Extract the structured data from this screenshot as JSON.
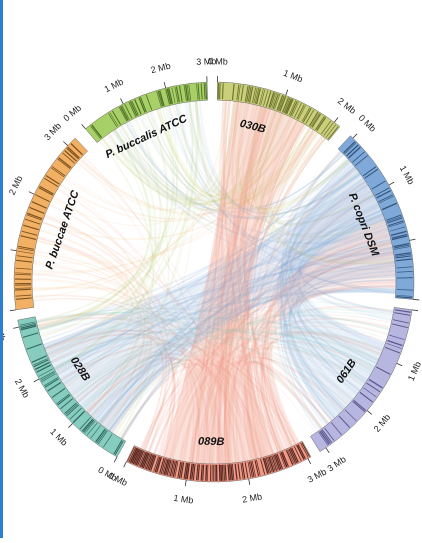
{
  "segments": [
    {
      "id": "030b",
      "name": "030B",
      "color": "#c9cf7a",
      "stripe": "#5c6322",
      "stripeDensity": 0.55
    },
    {
      "id": "pcopri",
      "name": "P. copri DSM",
      "color": "#7fa9d8",
      "stripe": "#26466d",
      "stripeDensity": 0.35
    },
    {
      "id": "061b",
      "name": "061B",
      "color": "#b7b6e0",
      "stripe": "#4d4a7e",
      "stripeDensity": 0.25
    },
    {
      "id": "089b",
      "name": "089B",
      "color": "#f09a86",
      "stripe": "#3b1410",
      "stripeDensity": 0.75
    },
    {
      "id": "028b",
      "name": "028B",
      "color": "#86cdc0",
      "stripe": "#23574e",
      "stripeDensity": 0.35
    },
    {
      "id": "pbuccae",
      "name": "P. buccae ATCC",
      "color": "#f2b064",
      "stripe": "#6b4313",
      "stripeDensity": 0.3
    },
    {
      "id": "pbuccalis",
      "name": "P. buccalis ATCC",
      "color": "#a8d068",
      "stripe": "#42601b",
      "stripeDensity": 0.5
    }
  ],
  "ticks": {
    "030b": [
      "0 Mb",
      "1 Mb",
      "2 Mb"
    ],
    "pcopri": [
      "0 Mb",
      "1 Mb",
      "2 Mb",
      "3 Mb"
    ],
    "061b": [
      "0 Mb",
      "1 Mb",
      "2 Mb",
      "3 Mb"
    ],
    "089b": [
      "0 Mb",
      "1 Mb",
      "2 Mb",
      "3 Mb"
    ],
    "028b": [
      "0 Mb",
      "1 Mb",
      "2 Mb",
      "3 Mb"
    ],
    "pbuccae": [
      "0 Mb",
      "1 Mb",
      "2 Mb",
      "3 Mb"
    ],
    "pbuccalis": [
      "0 Mb",
      "1 Mb",
      "2 Mb",
      "3 Mb"
    ]
  }
}
